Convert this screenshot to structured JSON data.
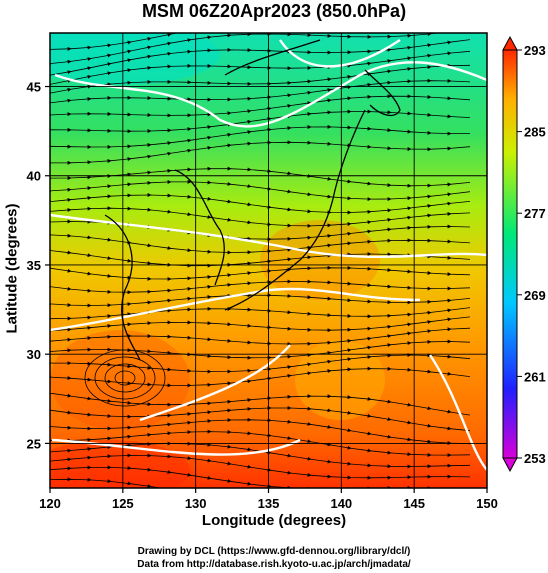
{
  "title": "MSM 06Z20Apr2023 (850.0hPa)",
  "x_axis": {
    "label": "Longitude (degrees)",
    "min": 120,
    "max": 150,
    "ticks": [
      "120",
      "125",
      "130",
      "135",
      "140",
      "145",
      "150"
    ]
  },
  "y_axis": {
    "label": "Latitude  (degrees)",
    "min": 22.5,
    "max": 48,
    "ticks": [
      "25",
      "30",
      "35",
      "40",
      "45"
    ]
  },
  "colorbar": {
    "min": 253,
    "max": 293,
    "ticks": [
      "253",
      "261",
      "269",
      "277",
      "285",
      "293"
    ],
    "colors": [
      "#d800d8",
      "#2020ff",
      "#00c8ff",
      "#00e878",
      "#ccf000",
      "#ffb000",
      "#ff2800"
    ]
  },
  "credits": {
    "line1": "Drawing by DCL (https://www.gfd-dennou.org/library/dcl/)",
    "line2": "Data from http://database.rish.kyoto-u.ac.jp/arch/jmadata/"
  }
}
